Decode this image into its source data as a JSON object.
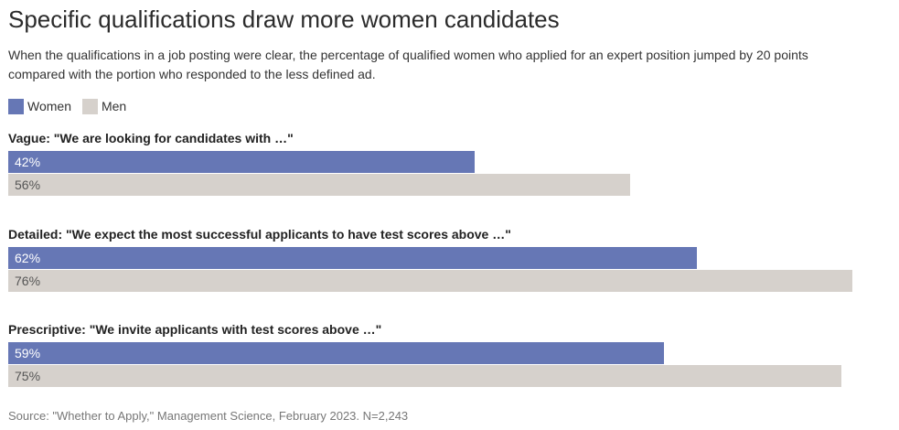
{
  "header": {
    "title": "Specific qualifications draw more women candidates",
    "subtitle": "When the qualifications in a job posting were clear, the percentage of qualified women who applied for an expert position jumped by 20 points compared with the portion who responded to the less defined ad."
  },
  "legend": {
    "women_label": "Women",
    "men_label": "Men"
  },
  "colors": {
    "women": "#6677b5",
    "men": "#d6d1cc",
    "women_text": "#ffffff",
    "men_text": "#555555"
  },
  "footer": {
    "source": "Source: \"Whether to Apply,\" Management Science, February 2023. N=2,243"
  },
  "chart_data": {
    "type": "bar",
    "orientation": "horizontal",
    "title": "Specific qualifications draw more women candidates",
    "categories": [
      "Vague: \"We are looking for candidates with …\"",
      "Detailed: \"We expect the most successful applicants to have test scores above …\"",
      "Prescriptive: \"We invite applicants with test scores above …\""
    ],
    "series": [
      {
        "name": "Women",
        "values": [
          42,
          62,
          59
        ],
        "labels": [
          "42%",
          "62%",
          "59%"
        ]
      },
      {
        "name": "Men",
        "values": [
          56,
          76,
          75
        ],
        "labels": [
          "56%",
          "76%",
          "75%"
        ]
      }
    ],
    "xlim": [
      0,
      76
    ],
    "unit": "%",
    "grid": false,
    "legend_position": "top-left"
  }
}
